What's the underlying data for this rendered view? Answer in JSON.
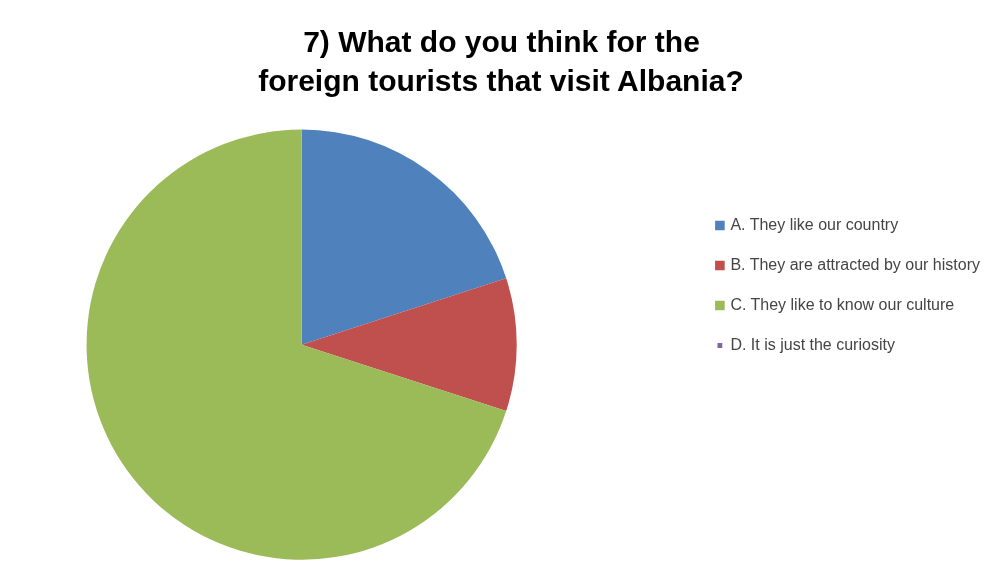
{
  "chart_data": {
    "type": "pie",
    "title": "7) What do you think for the foreign tourists that visit Albania?",
    "categories": [
      "A. They like our country",
      "B. They are attracted by our history",
      "C. They like to know our culture",
      "D. It is just the curiosity"
    ],
    "values": [
      20,
      10,
      70,
      0
    ],
    "colors": [
      "#4f81bd",
      "#c0504d",
      "#9bbb59",
      "#8064a2"
    ],
    "legend": "right"
  }
}
